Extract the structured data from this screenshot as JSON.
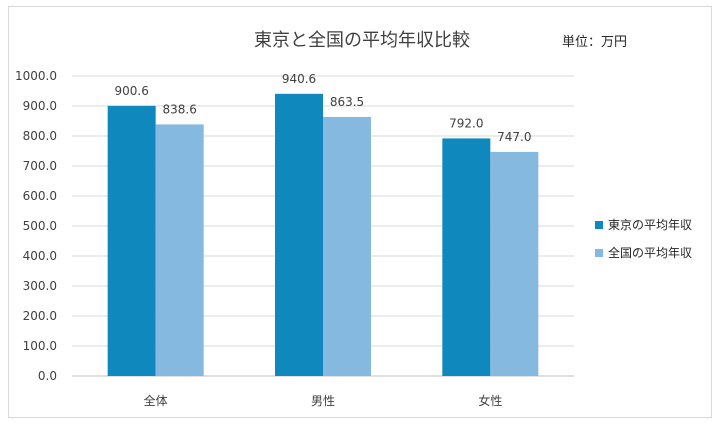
{
  "chart_data": {
    "type": "bar",
    "title": "東京と全国の平均年収比較",
    "unit_note": "単位：万円",
    "categories": [
      "全体",
      "男性",
      "女性"
    ],
    "series": [
      {
        "name": "東京の平均年収",
        "values": [
          900.6,
          940.6,
          792.0
        ],
        "color": "#0e88bd"
      },
      {
        "name": "全国の平均年収",
        "values": [
          838.6,
          863.5,
          747.0
        ],
        "color": "#85b9e0"
      }
    ],
    "ylim": [
      0,
      1000
    ],
    "ytick_step": 100,
    "ytick_labels": [
      "0.0",
      "100.0",
      "200.0",
      "300.0",
      "400.0",
      "500.0",
      "600.0",
      "700.0",
      "800.0",
      "900.0",
      "1000.0"
    ],
    "data_labels": [
      [
        "900.6",
        "940.6",
        "792.0"
      ],
      [
        "838.6",
        "863.5",
        "747.0"
      ]
    ],
    "grid": true,
    "legend_position": "right"
  }
}
